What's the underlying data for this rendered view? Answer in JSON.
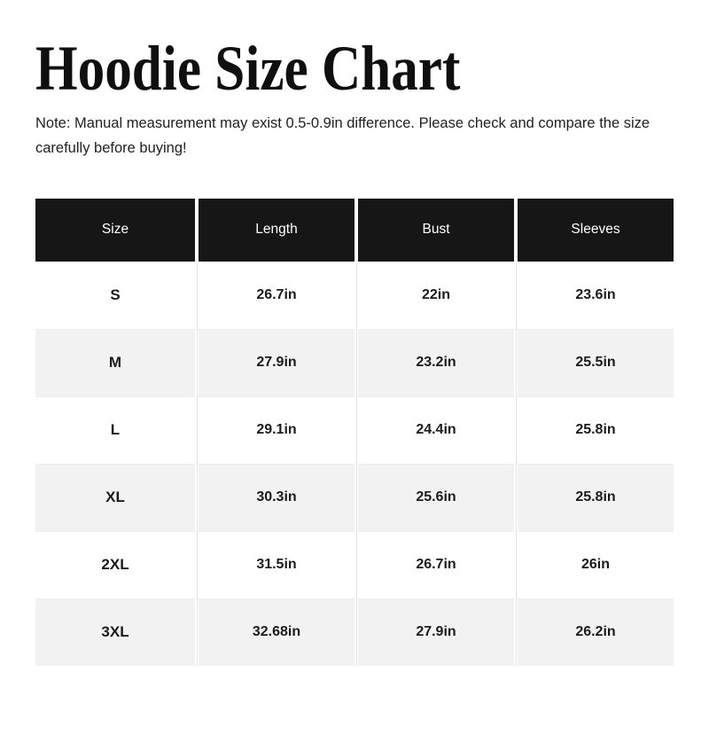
{
  "page": {
    "title": "Hoodie Size Chart",
    "note": "Note: Manual measurement may exist 0.5-0.9in difference. Please check and compare the size carefully before buying!"
  },
  "colors": {
    "header_bg": "#161616",
    "header_text": "#ffffff",
    "row_alt_bg": "#f2f2f2",
    "body_text": "#1b1b1b",
    "page_bg": "#ffffff"
  },
  "size_chart": {
    "type": "table",
    "columns": [
      "Size",
      "Length",
      "Bust",
      "Sleeves"
    ],
    "rows": [
      {
        "size": "S",
        "length": "26.7in",
        "bust": "22in",
        "sleeves": "23.6in"
      },
      {
        "size": "M",
        "length": "27.9in",
        "bust": "23.2in",
        "sleeves": "25.5in"
      },
      {
        "size": "L",
        "length": "29.1in",
        "bust": "24.4in",
        "sleeves": "25.8in"
      },
      {
        "size": "XL",
        "length": "30.3in",
        "bust": "25.6in",
        "sleeves": "25.8in"
      },
      {
        "size": "2XL",
        "length": "31.5in",
        "bust": "26.7in",
        "sleeves": "26in"
      },
      {
        "size": "3XL",
        "length": "32.68in",
        "bust": "27.9in",
        "sleeves": "26.2in"
      }
    ]
  }
}
